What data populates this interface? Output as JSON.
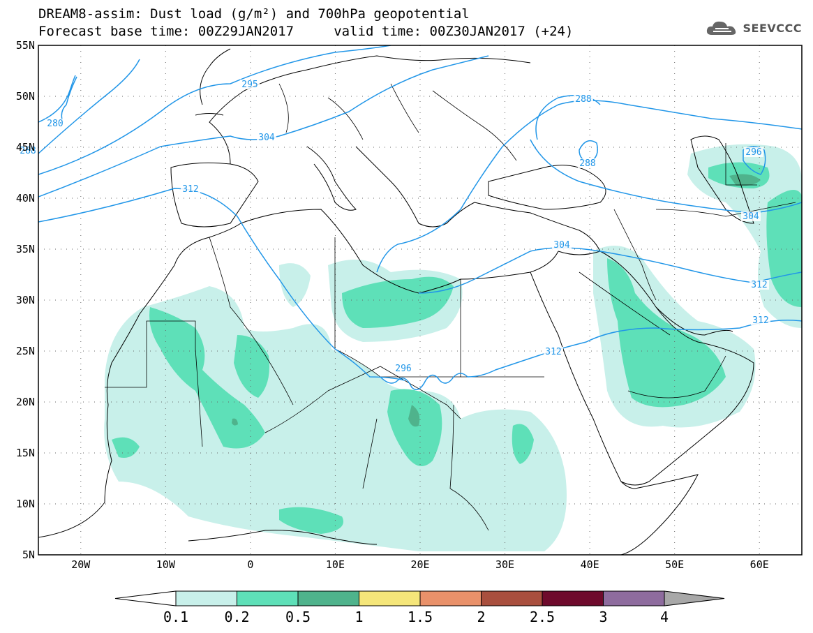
{
  "title": {
    "line1": "DREAM8-assim: Dust load (g/m²) and 700hPa geopotential",
    "line2": "Forecast base time: 00Z29JAN2017     valid time: 00Z30JAN2017 (+24)"
  },
  "logo": {
    "text": "SEEVCCC",
    "icon": "cloud-icon"
  },
  "map": {
    "lon_range": [
      -25,
      65
    ],
    "lat_range": [
      5,
      55
    ],
    "y_ticks": [
      "55N",
      "50N",
      "45N",
      "40N",
      "35N",
      "30N",
      "25N",
      "20N",
      "15N",
      "10N",
      "5N"
    ],
    "x_ticks": [
      "20W",
      "10W",
      "0",
      "10E",
      "20E",
      "30E",
      "40E",
      "50E",
      "60E"
    ],
    "grid": "dotted"
  },
  "contour_labels": [
    "280",
    "288",
    "295",
    "304",
    "312",
    "296",
    "288",
    "288",
    "296",
    "304",
    "304",
    "312",
    "312",
    "312"
  ],
  "colorbar": {
    "ticks": [
      "0.1",
      "0.2",
      "0.5",
      "1",
      "1.5",
      "2",
      "2.5",
      "3",
      "4"
    ],
    "colors": [
      "#c8f0ea",
      "#5ee0b8",
      "#4fb38c",
      "#f5e67a",
      "#e9916a",
      "#a94f3e",
      "#6e0a2c",
      "#8e6c9e"
    ],
    "under_color": "#ffffff",
    "over_color": "#a8a8a8"
  },
  "dust_colors": {
    "low": "#c8f0ea",
    "mid": "#5ee0b8",
    "high": "#4fb38c"
  },
  "contour_color": "#2196e8"
}
